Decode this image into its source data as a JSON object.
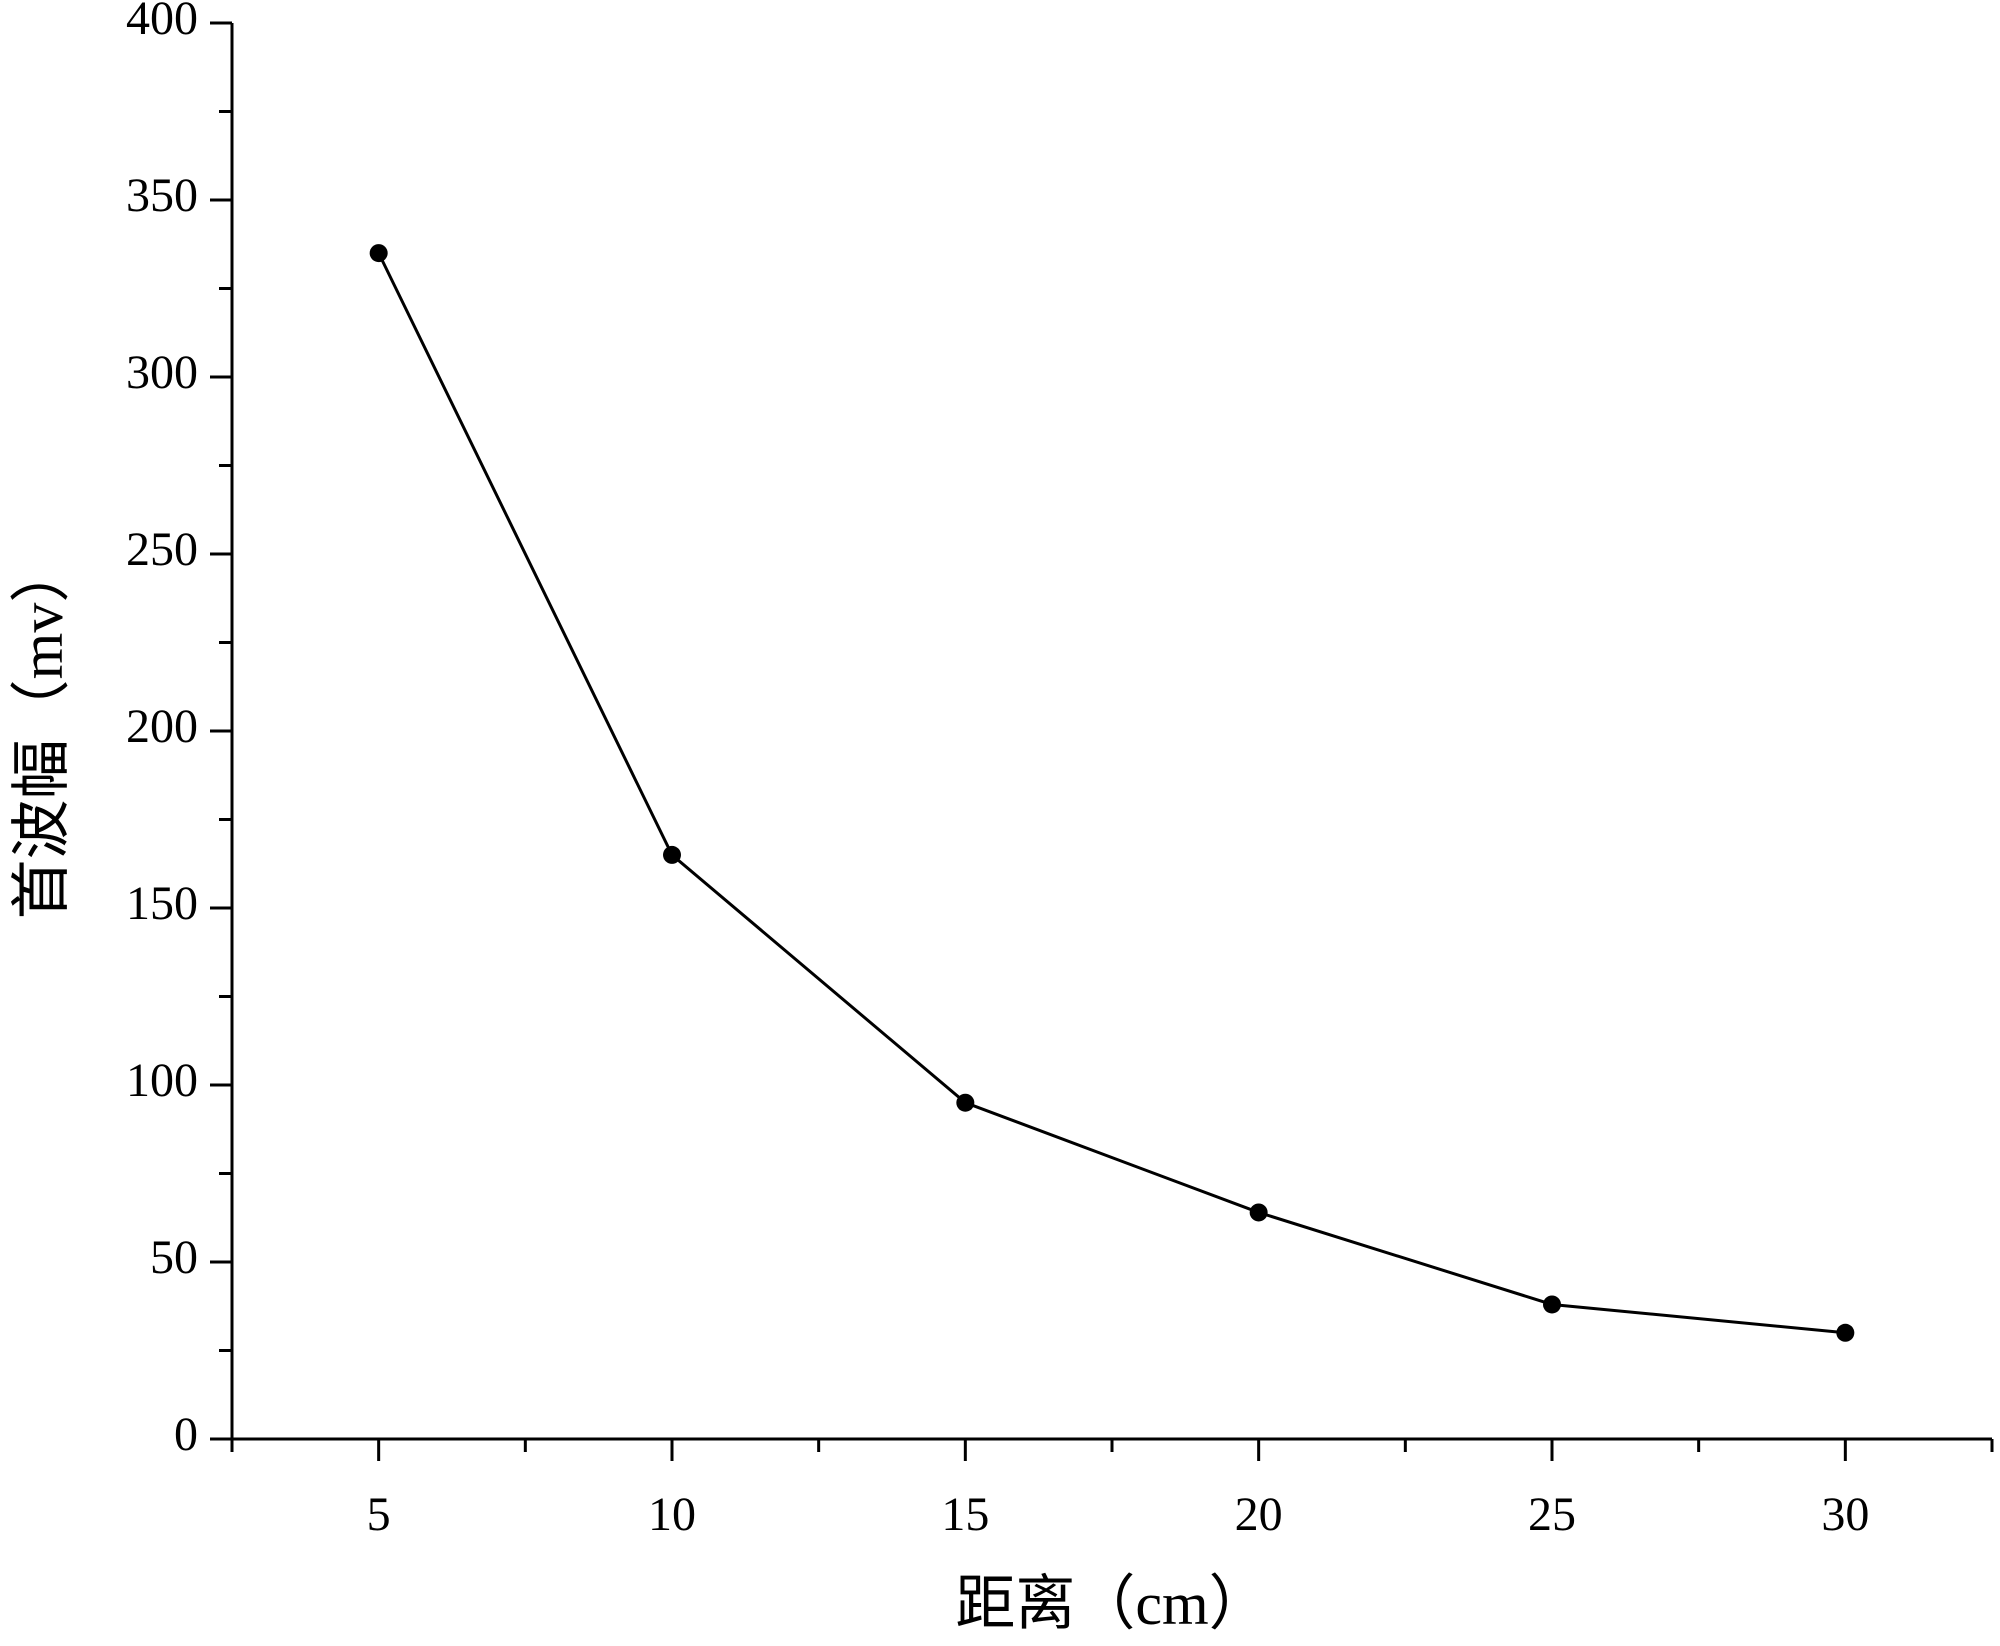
{
  "chart_data": {
    "type": "line",
    "x_label": "距离（cm）",
    "y_label": "首波幅（mv）",
    "x": [
      5,
      10,
      15,
      20,
      25,
      30
    ],
    "series": [
      {
        "color": "#000000",
        "values": [
          335,
          165,
          95,
          64,
          38,
          30
        ]
      }
    ],
    "xlim": [
      2.5,
      32.5
    ],
    "xticks": [
      5,
      10,
      15,
      20,
      25,
      30
    ],
    "x_minor_ticks": [
      2.5,
      7.5,
      12.5,
      17.5,
      22.5,
      27.5,
      32.5
    ],
    "ylim": [
      0,
      400
    ],
    "yticks": [
      0,
      50,
      100,
      150,
      200,
      250,
      300,
      350,
      400
    ],
    "y_minor_ticks": [
      25,
      75,
      125,
      175,
      225,
      275,
      325,
      375
    ],
    "grid": false
  }
}
